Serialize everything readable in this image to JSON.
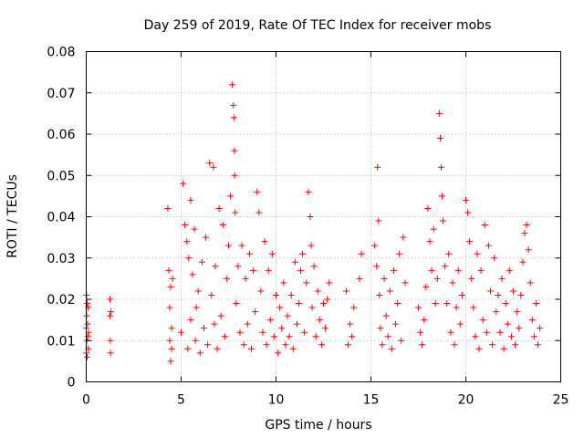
{
  "chart_data": {
    "type": "scatter",
    "title": "Day 259 of 2019, Rate Of TEC Index for receiver mobs",
    "xlabel": "GPS time / hours",
    "ylabel": "ROTI / TECUs",
    "xlim": [
      0,
      25
    ],
    "ylim": [
      0,
      0.08
    ],
    "x_ticks": [
      0,
      5,
      10,
      15,
      20,
      25
    ],
    "x_tick_labels": [
      "0",
      "5",
      "10",
      "15",
      "20",
      "25"
    ],
    "y_ticks": [
      0,
      0.01,
      0.02,
      0.03,
      0.04,
      0.05,
      0.06,
      0.07,
      0.08
    ],
    "y_tick_labels": [
      "0",
      "0.01",
      "0.02",
      "0.03",
      "0.04",
      "0.05",
      "0.06",
      "0.07",
      "0.08"
    ],
    "grid": true,
    "marker": "+",
    "marker_color": "#ff0000",
    "series": [
      {
        "name": "mobs",
        "x": [
          0.0,
          0.0,
          0.02,
          0.02,
          0.03,
          0.05,
          0.05,
          0.07,
          0.08,
          0.1,
          0.1,
          0.12,
          1.25,
          1.25,
          1.27,
          1.28,
          1.3,
          4.3,
          4.35,
          4.4,
          4.4,
          4.45,
          4.45,
          4.5,
          4.5,
          4.55,
          5.0,
          5.1,
          5.2,
          5.3,
          5.35,
          5.4,
          5.5,
          5.5,
          5.6,
          5.7,
          5.75,
          5.8,
          5.9,
          6.0,
          6.1,
          6.2,
          6.3,
          6.4,
          6.5,
          6.6,
          6.7,
          6.75,
          6.8,
          6.9,
          7.0,
          7.1,
          7.2,
          7.3,
          7.4,
          7.5,
          7.6,
          7.7,
          7.75,
          7.78,
          7.8,
          7.82,
          7.85,
          7.9,
          8.0,
          8.1,
          8.2,
          8.3,
          8.4,
          8.5,
          8.6,
          8.7,
          8.8,
          8.9,
          9.0,
          9.1,
          9.2,
          9.3,
          9.4,
          9.5,
          9.6,
          9.7,
          9.8,
          9.9,
          10.0,
          10.1,
          10.2,
          10.3,
          10.4,
          10.5,
          10.6,
          10.7,
          10.8,
          10.9,
          11.0,
          11.1,
          11.2,
          11.3,
          11.4,
          11.5,
          11.6,
          11.7,
          11.8,
          11.85,
          11.9,
          12.0,
          12.1,
          12.2,
          12.3,
          12.4,
          12.5,
          12.6,
          12.7,
          12.8,
          13.7,
          13.8,
          13.9,
          14.0,
          14.1,
          14.4,
          14.5,
          15.2,
          15.3,
          15.35,
          15.4,
          15.45,
          15.5,
          15.6,
          15.7,
          15.8,
          15.9,
          16.0,
          16.1,
          16.2,
          16.3,
          16.4,
          16.5,
          16.6,
          16.7,
          16.8,
          17.5,
          17.6,
          17.7,
          17.8,
          17.9,
          18.0,
          18.1,
          18.2,
          18.3,
          18.4,
          18.5,
          18.6,
          18.65,
          18.7,
          18.75,
          18.8,
          18.9,
          19.0,
          19.1,
          19.2,
          19.3,
          19.4,
          19.5,
          19.6,
          19.7,
          19.8,
          20.0,
          20.1,
          20.2,
          20.3,
          20.4,
          20.5,
          20.6,
          20.7,
          20.8,
          20.9,
          21.0,
          21.1,
          21.2,
          21.3,
          21.4,
          21.5,
          21.6,
          21.7,
          21.8,
          21.9,
          22.0,
          22.1,
          22.2,
          22.3,
          22.4,
          22.5,
          22.6,
          22.7,
          22.8,
          22.9,
          23.0,
          23.1,
          23.2,
          23.3,
          23.4,
          23.5,
          23.6,
          23.7,
          23.8,
          23.9
        ],
        "y": [
          0.013,
          0.007,
          0.021,
          0.016,
          0.01,
          0.019,
          0.006,
          0.014,
          0.011,
          0.018,
          0.008,
          0.012,
          0.02,
          0.016,
          0.01,
          0.007,
          0.017,
          0.042,
          0.027,
          0.018,
          0.01,
          0.023,
          0.005,
          0.013,
          0.008,
          0.025,
          0.012,
          0.048,
          0.038,
          0.034,
          0.008,
          0.03,
          0.044,
          0.015,
          0.026,
          0.037,
          0.01,
          0.018,
          0.022,
          0.007,
          0.029,
          0.013,
          0.035,
          0.009,
          0.053,
          0.021,
          0.052,
          0.014,
          0.028,
          0.008,
          0.042,
          0.016,
          0.038,
          0.011,
          0.025,
          0.033,
          0.045,
          0.072,
          0.067,
          0.064,
          0.056,
          0.05,
          0.041,
          0.019,
          0.028,
          0.012,
          0.033,
          0.009,
          0.025,
          0.014,
          0.031,
          0.008,
          0.027,
          0.017,
          0.046,
          0.041,
          0.022,
          0.012,
          0.034,
          0.009,
          0.027,
          0.015,
          0.031,
          0.011,
          0.021,
          0.007,
          0.018,
          0.013,
          0.024,
          0.009,
          0.016,
          0.011,
          0.021,
          0.008,
          0.029,
          0.014,
          0.019,
          0.027,
          0.031,
          0.012,
          0.024,
          0.046,
          0.04,
          0.033,
          0.018,
          0.028,
          0.011,
          0.022,
          0.015,
          0.009,
          0.019,
          0.013,
          0.02,
          0.024,
          0.022,
          0.009,
          0.014,
          0.011,
          0.018,
          0.025,
          0.031,
          0.033,
          0.028,
          0.052,
          0.039,
          0.021,
          0.013,
          0.009,
          0.025,
          0.016,
          0.011,
          0.022,
          0.008,
          0.027,
          0.014,
          0.019,
          0.031,
          0.01,
          0.035,
          0.024,
          0.018,
          0.012,
          0.009,
          0.015,
          0.023,
          0.042,
          0.034,
          0.027,
          0.037,
          0.019,
          0.025,
          0.065,
          0.059,
          0.052,
          0.045,
          0.039,
          0.028,
          0.019,
          0.031,
          0.012,
          0.024,
          0.009,
          0.018,
          0.027,
          0.014,
          0.021,
          0.044,
          0.041,
          0.034,
          0.025,
          0.018,
          0.011,
          0.031,
          0.008,
          0.027,
          0.015,
          0.038,
          0.012,
          0.033,
          0.022,
          0.009,
          0.03,
          0.017,
          0.021,
          0.012,
          0.025,
          0.008,
          0.019,
          0.014,
          0.027,
          0.011,
          0.022,
          0.009,
          0.017,
          0.013,
          0.021,
          0.029,
          0.036,
          0.038,
          0.032,
          0.024,
          0.015,
          0.011,
          0.019,
          0.009,
          0.013
        ]
      }
    ]
  }
}
